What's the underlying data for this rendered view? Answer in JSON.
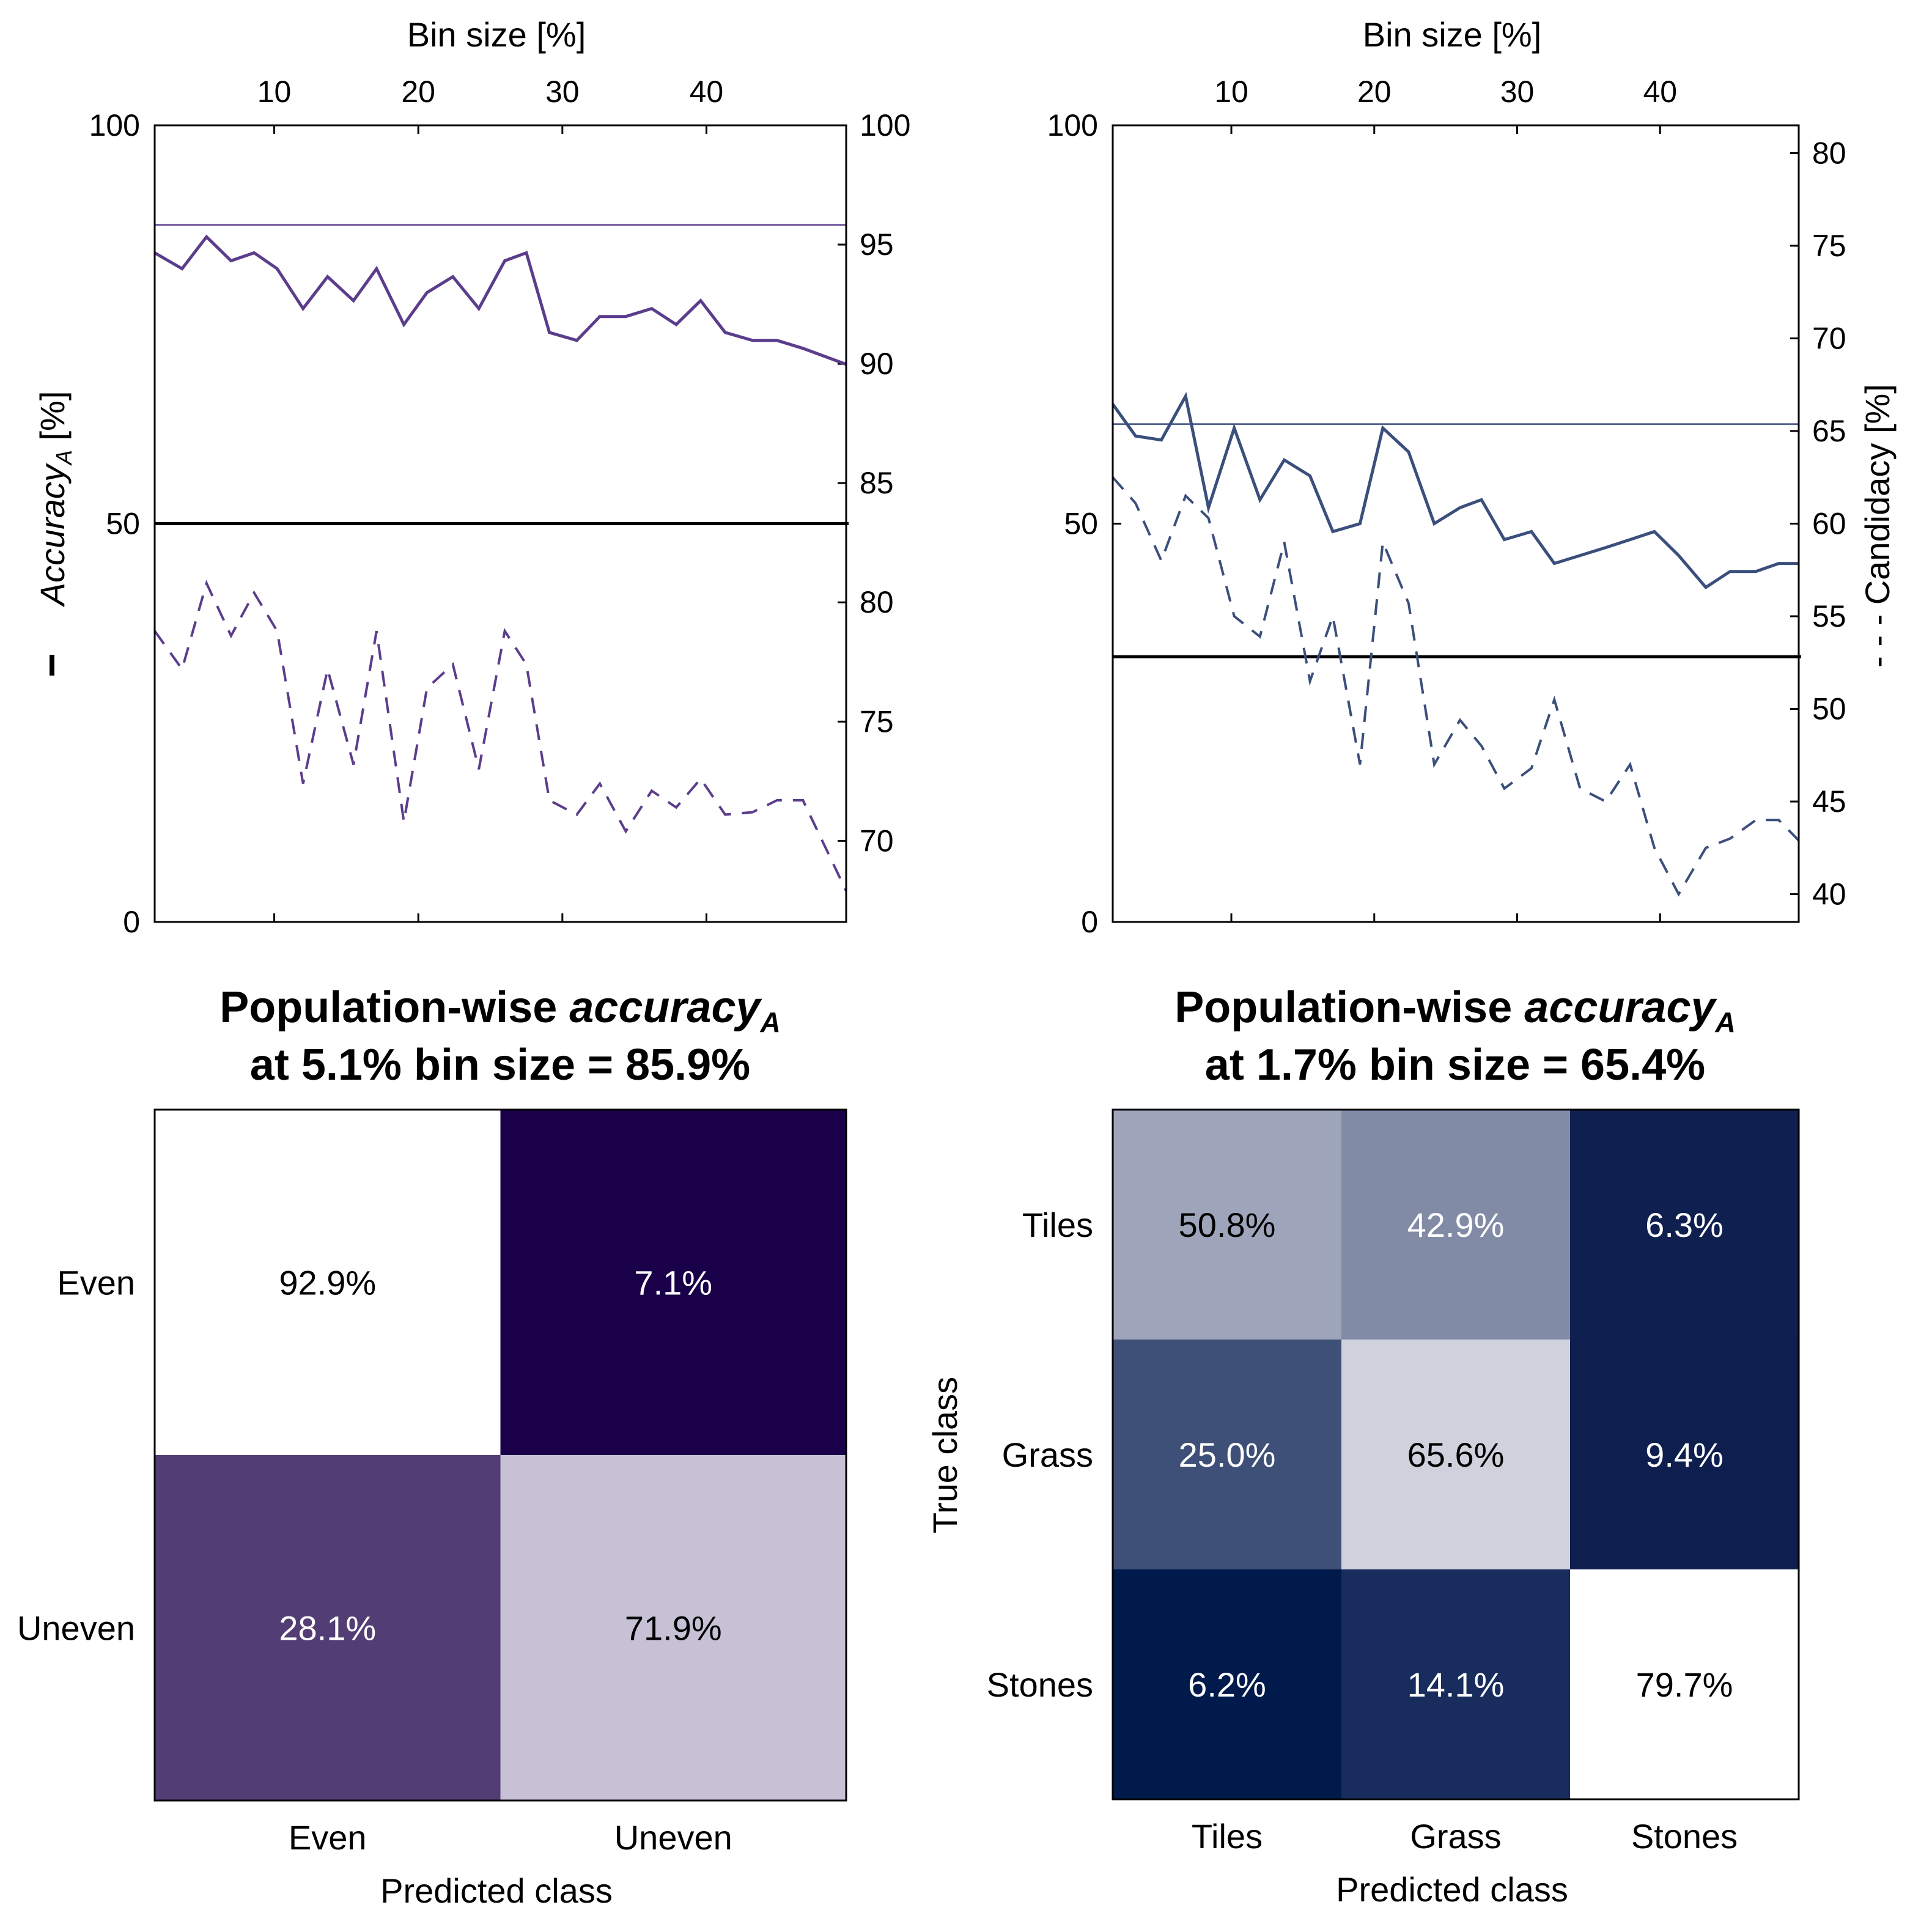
{
  "chart_data": [
    {
      "type": "line",
      "panel": "top-left",
      "xlabel": "Bin size [%]",
      "xticks": [
        10,
        20,
        30,
        40
      ],
      "xlim": [
        1.7,
        49.7
      ],
      "ylabel_left": "Accuracy",
      "ylabel_left_sub": "A",
      "ylabel_left_unit": " [%]",
      "ylim_left": [
        0,
        100
      ],
      "yticks_left": [
        "0",
        "50",
        "100"
      ],
      "ylim_right": [
        66.6,
        100
      ],
      "yticks_right": [
        "70",
        "75",
        "80",
        "85",
        "90",
        "95",
        "100"
      ],
      "color": "#5b3d8c",
      "chance_level": 50,
      "series": [
        {
          "name": "Accuracy (solid)",
          "axis": "left",
          "x": [
            1.7,
            3.6,
            5.3,
            7.0,
            8.6,
            10.2,
            12.0,
            13.7,
            15.5,
            17.1,
            19.0,
            20.6,
            22.4,
            24.2,
            26.0,
            27.5,
            29.1,
            31.0,
            32.6,
            34.4,
            36.2,
            37.9,
            39.6,
            41.3,
            43.2,
            44.9,
            46.7,
            49.7
          ],
          "values": [
            84,
            82,
            86,
            83,
            84,
            82,
            77,
            81,
            78,
            82,
            75,
            79,
            81,
            77,
            83,
            84,
            74,
            73,
            76,
            76,
            77,
            75,
            78,
            74,
            73,
            73,
            72,
            70
          ]
        },
        {
          "name": "Candidacy (dashed)",
          "axis": "right",
          "x": [
            1.7,
            3.6,
            5.3,
            7.0,
            8.6,
            10.2,
            12.0,
            13.7,
            15.5,
            17.1,
            19.0,
            20.6,
            22.4,
            24.2,
            26.0,
            27.5,
            29.1,
            31.0,
            32.6,
            34.4,
            36.2,
            37.9,
            39.6,
            41.3,
            43.2,
            44.9,
            46.7,
            49.7
          ],
          "values": [
            78.8,
            77.2,
            80.8,
            78.6,
            80.4,
            78.8,
            72.4,
            77.2,
            73.2,
            78.8,
            70.8,
            76.4,
            77.4,
            73.0,
            78.8,
            77.4,
            71.7,
            71.1,
            72.4,
            70.4,
            72.1,
            71.4,
            72.6,
            71.1,
            71.2,
            71.7,
            71.7,
            67.9
          ]
        },
        {
          "name": "Population-wise accuracy (reference)",
          "axis": "left",
          "constant": 87.5
        }
      ]
    },
    {
      "type": "line",
      "panel": "top-right",
      "xlabel": "Bin size [%]",
      "xticks": [
        10,
        20,
        30,
        40
      ],
      "xlim": [
        1.7,
        49.7
      ],
      "ylim_left": [
        0,
        100
      ],
      "yticks_left": [
        "0",
        "50",
        "100"
      ],
      "ylabel_right": "- - - Candidacy [%]",
      "ylim_right": [
        38.5,
        81.5
      ],
      "yticks_right": [
        "40",
        "45",
        "50",
        "55",
        "60",
        "65",
        "70",
        "75",
        "80"
      ],
      "color": "#3b4f7c",
      "chance_level": 33.3,
      "series": [
        {
          "name": "Accuracy (solid)",
          "axis": "left",
          "x": [
            1.7,
            3.3,
            5.1,
            6.8,
            8.4,
            10.2,
            12.0,
            13.7,
            15.5,
            17.1,
            19.0,
            20.6,
            22.4,
            24.2,
            26.0,
            27.5,
            29.1,
            31.0,
            32.6,
            34.4,
            36.2,
            37.9,
            39.6,
            41.3,
            43.2,
            44.9,
            46.7,
            48.3,
            49.7
          ],
          "values": [
            65,
            61,
            60.5,
            66,
            52,
            62,
            53,
            58,
            56,
            49,
            50,
            62,
            59,
            50,
            52,
            53,
            48,
            49,
            45,
            46,
            47,
            48,
            49,
            46,
            42,
            44,
            44,
            45,
            45
          ]
        },
        {
          "name": "Candidacy (dashed)",
          "axis": "right",
          "x": [
            1.7,
            3.3,
            5.1,
            6.8,
            8.4,
            10.2,
            12.0,
            13.7,
            15.5,
            17.1,
            19.0,
            20.6,
            22.4,
            24.2,
            26.0,
            27.5,
            29.1,
            31.0,
            32.6,
            34.4,
            36.2,
            37.9,
            39.6,
            41.3,
            43.2,
            44.9,
            46.7,
            48.3,
            49.7
          ],
          "values": [
            62.5,
            61.1,
            58,
            61.5,
            60.3,
            55,
            53.9,
            59,
            51.5,
            55,
            47,
            59,
            55.7,
            47,
            49.4,
            48,
            45.7,
            46.8,
            50.5,
            45.7,
            45,
            47,
            42.5,
            40,
            42.5,
            43,
            44,
            44,
            42.9
          ]
        },
        {
          "name": "Population-wise accuracy (reference)",
          "axis": "left",
          "constant": 62.5
        }
      ]
    },
    {
      "type": "heatmap",
      "panel": "bottom-left",
      "title_line1_prefix": "Population-wise ",
      "title_line1_italic": "accuracy",
      "title_line1_sub": "A",
      "title_line2": "at 5.1% bin size = 85.9%",
      "xlabel": "Predicted class",
      "ylabel": "",
      "x_categories": [
        "Even",
        "Uneven"
      ],
      "y_categories": [
        "Even",
        "Uneven"
      ],
      "values": [
        [
          92.9,
          7.1
        ],
        [
          28.1,
          71.9
        ]
      ],
      "labels": [
        [
          "92.9%",
          "7.1%"
        ],
        [
          "28.1%",
          "71.9%"
        ]
      ],
      "cell_colors": [
        [
          "#ffffff",
          "#190049"
        ],
        [
          "#523e74",
          "#c7c1d5"
        ]
      ],
      "text_colors": [
        [
          "#000000",
          "#ffffff"
        ],
        [
          "#ffffff",
          "#000000"
        ]
      ]
    },
    {
      "type": "heatmap",
      "panel": "bottom-right",
      "title_line1_prefix": "Population-wise ",
      "title_line1_italic": "accuracy",
      "title_line1_sub": "A",
      "title_line2": "at 1.7% bin size = 65.4%",
      "xlabel": "Predicted class",
      "ylabel": "True class",
      "x_categories": [
        "Tiles",
        "Grass",
        "Stones"
      ],
      "y_categories": [
        "Tiles",
        "Grass",
        "Stones"
      ],
      "values": [
        [
          50.8,
          42.9,
          6.3
        ],
        [
          25.0,
          65.6,
          9.4
        ],
        [
          6.2,
          14.1,
          79.7
        ]
      ],
      "labels": [
        [
          "50.8%",
          "42.9%",
          "6.3%"
        ],
        [
          "25.0%",
          "65.6%",
          "9.4%"
        ],
        [
          "6.2%",
          "14.1%",
          "79.7%"
        ]
      ],
      "cell_colors": [
        [
          "#9ea5ba",
          "#828ba6",
          "#0f1f4f"
        ],
        [
          "#3f5078",
          "#cfd2dc",
          "#0e1f4f"
        ],
        [
          "#001a4b",
          "#182d5d",
          "#ffffff"
        ]
      ],
      "text_colors": [
        [
          "#000000",
          "#ffffff",
          "#ffffff"
        ],
        [
          "#ffffff",
          "#000000",
          "#ffffff"
        ],
        [
          "#ffffff",
          "#ffffff",
          "#000000"
        ]
      ]
    }
  ]
}
